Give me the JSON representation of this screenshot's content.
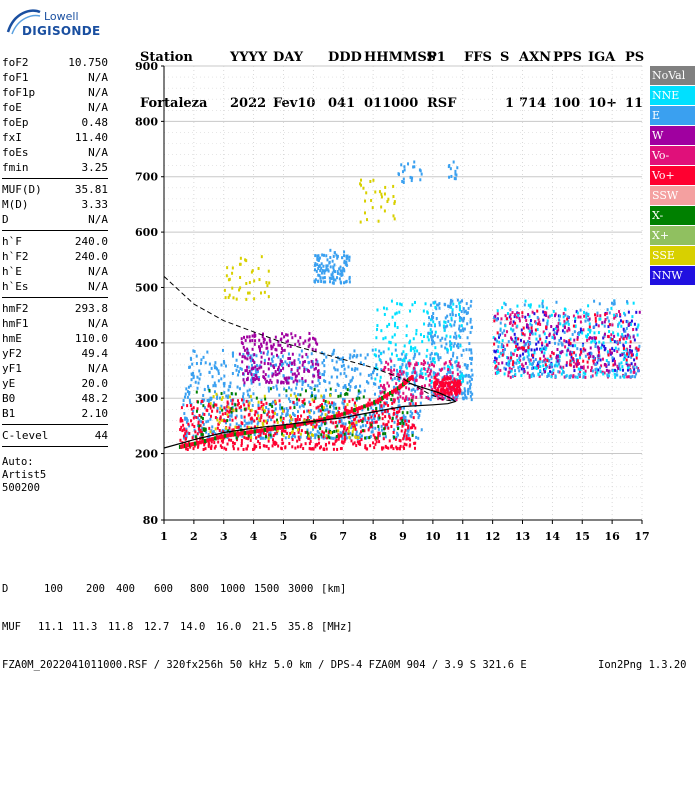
{
  "logo": {
    "line1": "Lowell",
    "line2": "DIGISONDE"
  },
  "header": {
    "labels": [
      "Station",
      "YYYY",
      "DAY",
      "DDD",
      "HHMMSS",
      "P1",
      "FFS",
      "S",
      "AXN",
      "PPS",
      "IGA",
      "PS"
    ],
    "values": [
      "Fortaleza",
      "2022",
      "Fev10",
      "041",
      "011000",
      "RSF",
      "",
      "1",
      "714",
      "100",
      "10+",
      "11"
    ]
  },
  "params": {
    "group1": [
      {
        "k": "foF2",
        "v": "10.750"
      },
      {
        "k": "foF1",
        "v": "N/A"
      },
      {
        "k": "foF1p",
        "v": "N/A"
      },
      {
        "k": "foE",
        "v": "N/A"
      },
      {
        "k": "foEp",
        "v": "0.48"
      },
      {
        "k": "fxI",
        "v": "11.40"
      },
      {
        "k": "foEs",
        "v": "N/A"
      },
      {
        "k": "fmin",
        "v": "3.25"
      }
    ],
    "group2": [
      {
        "k": "MUF(D)",
        "v": "35.81"
      },
      {
        "k": "M(D)",
        "v": "3.33"
      },
      {
        "k": "D",
        "v": "N/A"
      }
    ],
    "group3": [
      {
        "k": "h`F",
        "v": "240.0"
      },
      {
        "k": "h`F2",
        "v": "240.0"
      },
      {
        "k": "h`E",
        "v": "N/A"
      },
      {
        "k": "h`Es",
        "v": "N/A"
      }
    ],
    "group4": [
      {
        "k": "hmF2",
        "v": "293.8"
      },
      {
        "k": "hmF1",
        "v": "N/A"
      },
      {
        "k": "hmE",
        "v": "110.0"
      },
      {
        "k": "yF2",
        "v": "49.4"
      },
      {
        "k": "yF1",
        "v": "N/A"
      },
      {
        "k": "yE",
        "v": "20.0"
      },
      {
        "k": "B0",
        "v": "48.2"
      },
      {
        "k": "B1",
        "v": "2.10"
      }
    ],
    "group5": [
      {
        "k": "C-level",
        "v": "44"
      }
    ],
    "auto": [
      "Auto:",
      "Artist5",
      "500200"
    ]
  },
  "legend": [
    {
      "label": "NoVal",
      "color": "#808080"
    },
    {
      "label": "NNE",
      "color": "#00e0ff"
    },
    {
      "label": "E",
      "color": "#3aa0f0"
    },
    {
      "label": "W",
      "color": "#a000a0"
    },
    {
      "label": "Vo-",
      "color": "#e0107a"
    },
    {
      "label": "Vo+",
      "color": "#ff0030"
    },
    {
      "label": "SSW",
      "color": "#f4a0a0"
    },
    {
      "label": "X-",
      "color": "#008000"
    },
    {
      "label": "X+",
      "color": "#90c060"
    },
    {
      "label": "SSE",
      "color": "#d8d000"
    },
    {
      "label": "NNW",
      "color": "#2010e0"
    }
  ],
  "footer": {
    "d_label": "D",
    "d_values": [
      "100",
      "200",
      "400",
      "600",
      "800",
      "1000",
      "1500",
      "3000",
      "[km]"
    ],
    "muf_label": "MUF",
    "muf_values": [
      "11.1",
      "11.3",
      "11.8",
      "12.7",
      "14.0",
      "16.0",
      "21.5",
      "35.8",
      "[MHz]"
    ],
    "info": "FZA0M_2022041011000.RSF / 320fx256h 50 kHz 5.0 km / DPS-4 FZA0M 904 / 3.9 S 321.6 E",
    "version": "Ion2Png 1.3.20"
  },
  "chart_data": {
    "type": "scatter",
    "xlim": [
      1,
      17
    ],
    "ylim": [
      80,
      900
    ],
    "x_ticks": [
      "1",
      "2",
      "3",
      "4",
      "5",
      "6",
      "7",
      "8",
      "9",
      "10",
      "11",
      "12",
      "13",
      "14",
      "15",
      "16",
      "17"
    ],
    "y_ticks": [
      "80",
      "200",
      "300",
      "400",
      "500",
      "600",
      "700",
      "800",
      "900"
    ],
    "grid": true,
    "profile_solid": [
      [
        1.0,
        210
      ],
      [
        2.0,
        225
      ],
      [
        3.0,
        238
      ],
      [
        4.0,
        246
      ],
      [
        5.0,
        252
      ],
      [
        6.0,
        258
      ],
      [
        7.0,
        265
      ],
      [
        8.0,
        275
      ],
      [
        9.0,
        285
      ],
      [
        10.0,
        288
      ],
      [
        10.5,
        290
      ],
      [
        10.75,
        294
      ],
      [
        10.6,
        300
      ],
      [
        10.2,
        310
      ],
      [
        9.6,
        320
      ],
      [
        9.2,
        327
      ]
    ],
    "profile_dashed": [
      [
        1.0,
        520
      ],
      [
        2.0,
        470
      ],
      [
        3.0,
        440
      ],
      [
        4.0,
        420
      ],
      [
        5.0,
        400
      ],
      [
        6.0,
        385
      ],
      [
        7.0,
        370
      ],
      [
        8.0,
        355
      ],
      [
        9.0,
        335
      ],
      [
        9.8,
        310
      ],
      [
        10.3,
        298
      ],
      [
        10.75,
        294
      ]
    ],
    "trace_o": [
      [
        1.5,
        212
      ],
      [
        2.0,
        218
      ],
      [
        3.0,
        232
      ],
      [
        4.0,
        240
      ],
      [
        5.0,
        248
      ],
      [
        6.0,
        258
      ],
      [
        7.0,
        272
      ],
      [
        8.0,
        292
      ],
      [
        8.8,
        318
      ],
      [
        9.3,
        340
      ]
    ],
    "clusters": [
      {
        "color": "#3aa0f0",
        "x": [
          1.6,
          9.6
        ],
        "y": [
          230,
          390
        ],
        "n": 900
      },
      {
        "color": "#3aa0f0",
        "x": [
          6.0,
          7.2
        ],
        "y": [
          510,
          570
        ],
        "n": 120
      },
      {
        "color": "#3aa0f0",
        "x": [
          9.8,
          11.3
        ],
        "y": [
          300,
          480
        ],
        "n": 250
      },
      {
        "color": "#00e0ff",
        "x": [
          8.0,
          11.0
        ],
        "y": [
          330,
          480
        ],
        "n": 160
      },
      {
        "color": "#a000a0",
        "x": [
          3.5,
          6.2
        ],
        "y": [
          330,
          420
        ],
        "n": 220
      },
      {
        "color": "#ff0030",
        "x": [
          1.5,
          9.4
        ],
        "y": [
          210,
          300
        ],
        "n": 600
      },
      {
        "color": "#e0107a",
        "x": [
          8.2,
          10.9
        ],
        "y": [
          300,
          370
        ],
        "n": 180
      },
      {
        "color": "#ff0030",
        "x": [
          10.0,
          10.9
        ],
        "y": [
          310,
          340
        ],
        "n": 120
      },
      {
        "color": "#008000",
        "x": [
          2.0,
          9.4
        ],
        "y": [
          230,
          320
        ],
        "n": 130
      },
      {
        "color": "#d8d000",
        "x": [
          2.5,
          7.5
        ],
        "y": [
          230,
          310
        ],
        "n": 90
      },
      {
        "color": "#d8d000",
        "x": [
          3.0,
          4.5
        ],
        "y": [
          480,
          560
        ],
        "n": 40
      },
      {
        "color": "#2010e0",
        "x": [
          12.0,
          16.9
        ],
        "y": [
          350,
          460
        ],
        "n": 150
      },
      {
        "color": "#e0107a",
        "x": [
          12.0,
          16.9
        ],
        "y": [
          340,
          460
        ],
        "n": 180
      },
      {
        "color": "#00e0ff",
        "x": [
          12.0,
          16.9
        ],
        "y": [
          340,
          480
        ],
        "n": 220
      },
      {
        "color": "#3aa0f0",
        "x": [
          12.0,
          16.9
        ],
        "y": [
          340,
          480
        ],
        "n": 200
      },
      {
        "color": "#ff0030",
        "x": [
          12.0,
          16.9
        ],
        "y": [
          360,
          460
        ],
        "n": 80
      },
      {
        "color": "#a000a0",
        "x": [
          12.0,
          16.9
        ],
        "y": [
          350,
          460
        ],
        "n": 80
      },
      {
        "color": "#d8d000",
        "x": [
          7.5,
          8.7
        ],
        "y": [
          620,
          700
        ],
        "n": 30
      },
      {
        "color": "#3aa0f0",
        "x": [
          8.8,
          9.6
        ],
        "y": [
          690,
          740
        ],
        "n": 20
      },
      {
        "color": "#3aa0f0",
        "x": [
          10.5,
          10.8
        ],
        "y": [
          690,
          730
        ],
        "n": 12
      }
    ]
  }
}
